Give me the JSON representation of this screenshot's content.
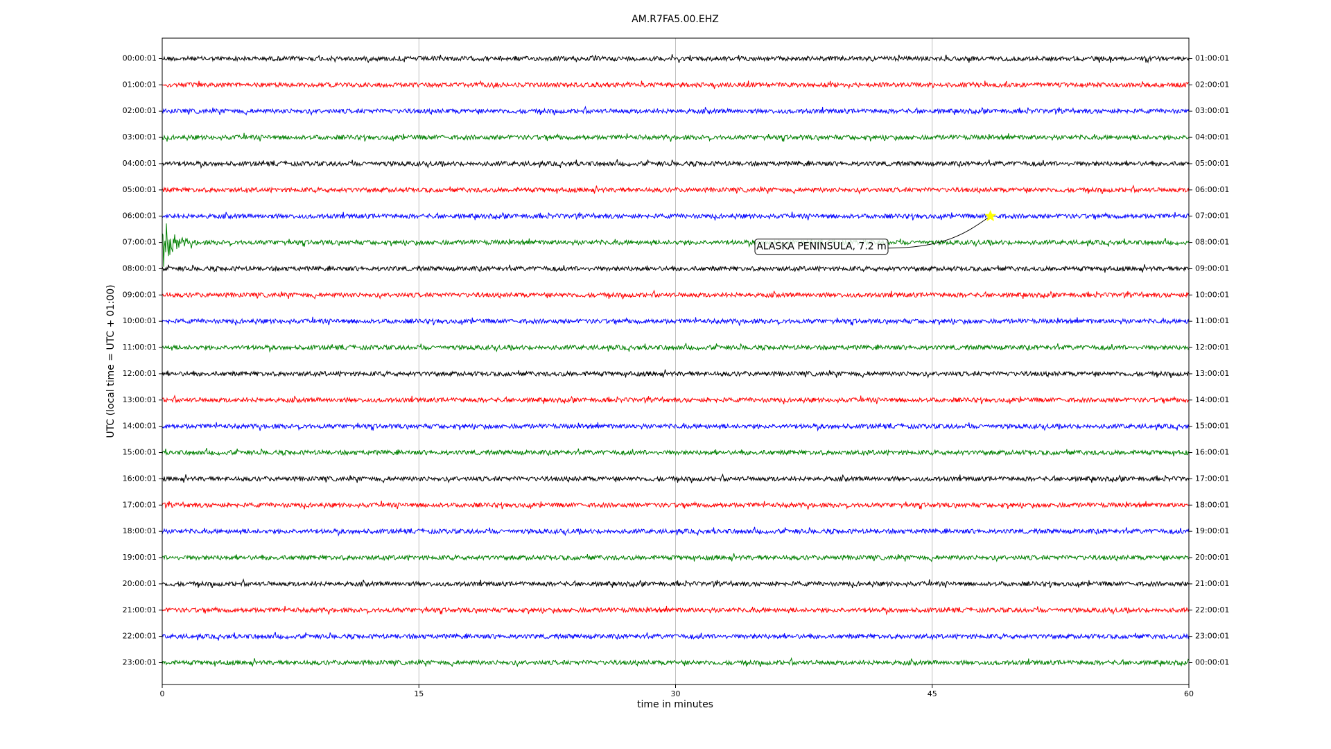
{
  "chart_data": {
    "type": "dayplot",
    "title": "AM.R7FA5.00.EHZ",
    "x_label": "time in minutes",
    "y_label": "UTC (local time = UTC + 01:00)",
    "xlim": [
      0,
      60
    ],
    "xticks": [
      0,
      15,
      30,
      45,
      60
    ],
    "grid": true,
    "colors": [
      "#000000",
      "#ff0000",
      "#0000ff",
      "#008000"
    ],
    "categories": [
      "00:00:01",
      "01:00:01",
      "02:00:01",
      "03:00:01",
      "04:00:01",
      "05:00:01",
      "06:00:01",
      "07:00:01",
      "08:00:01",
      "09:00:01",
      "10:00:01",
      "11:00:01",
      "12:00:01",
      "13:00:01",
      "14:00:01",
      "15:00:01",
      "16:00:01",
      "17:00:01",
      "18:00:01",
      "19:00:01",
      "20:00:01",
      "21:00:01",
      "22:00:01",
      "23:00:01"
    ],
    "right_labels": [
      "01:00:01",
      "02:00:01",
      "03:00:01",
      "04:00:01",
      "05:00:01",
      "06:00:01",
      "07:00:01",
      "08:00:01",
      "09:00:01",
      "10:00:01",
      "11:00:01",
      "12:00:01",
      "13:00:01",
      "14:00:01",
      "15:00:01",
      "16:00:01",
      "17:00:01",
      "18:00:01",
      "19:00:01",
      "20:00:01",
      "21:00:01",
      "22:00:01",
      "23:00:01",
      "00:00:01"
    ],
    "events": [
      {
        "label": "ALASKA PENINSULA, 7.2 m",
        "x": 48.4,
        "category": 6
      }
    ]
  }
}
